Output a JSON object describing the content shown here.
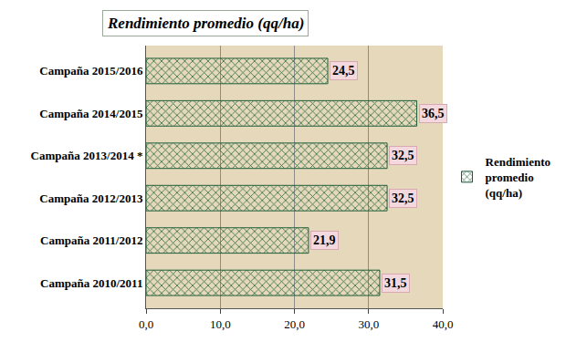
{
  "chart_data": {
    "type": "bar",
    "title": "Rendimiento promedio (qq/ha)",
    "orientation": "horizontal",
    "categories": [
      "Campaña 2010/2011",
      "Campaña 2011/2012",
      "Campaña 2012/2013",
      "Campaña 2013/2014 *",
      "Campaña 2014/2015",
      "Campaña 2015/2016"
    ],
    "series": [
      {
        "name": "Rendimiento promedio (qq/ha)",
        "color": "#3d8b5a",
        "values": [
          31.5,
          21.9,
          32.5,
          32.5,
          36.5,
          24.5
        ],
        "value_labels": [
          "31,5",
          "21,9",
          "32,5",
          "32,5",
          "36,5",
          "24,5"
        ]
      }
    ],
    "xlim": [
      0,
      40
    ],
    "xticks": [
      {
        "value": 0,
        "label": "0,0"
      },
      {
        "value": 10,
        "label": "10,0"
      },
      {
        "value": 20,
        "label": "20,0"
      },
      {
        "value": 30,
        "label": "30,0"
      },
      {
        "value": 40,
        "label": "40,0"
      }
    ],
    "grid": true,
    "data_labels": true,
    "legend": "right"
  }
}
